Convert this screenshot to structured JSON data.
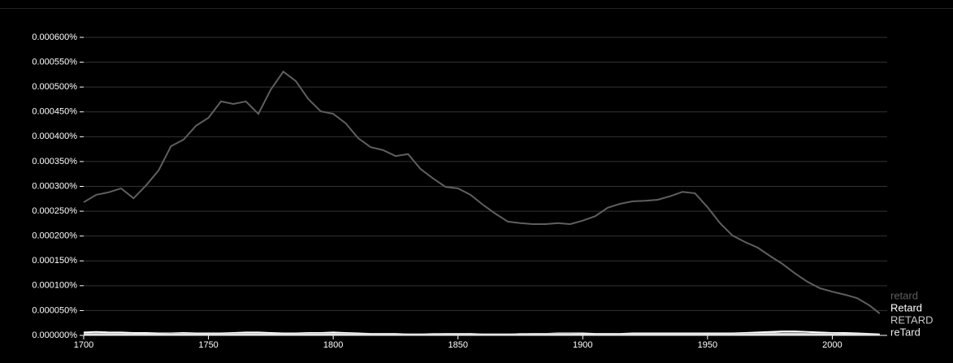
{
  "chart_data": {
    "type": "line",
    "x": [
      1700,
      1705,
      1710,
      1715,
      1720,
      1725,
      1730,
      1735,
      1740,
      1745,
      1750,
      1755,
      1760,
      1765,
      1770,
      1775,
      1780,
      1785,
      1790,
      1795,
      1800,
      1805,
      1810,
      1815,
      1820,
      1825,
      1830,
      1835,
      1840,
      1845,
      1850,
      1855,
      1860,
      1865,
      1870,
      1875,
      1880,
      1885,
      1890,
      1895,
      1900,
      1905,
      1910,
      1915,
      1920,
      1925,
      1930,
      1935,
      1940,
      1945,
      1950,
      1955,
      1960,
      1965,
      1970,
      1975,
      1980,
      1985,
      1990,
      1995,
      2000,
      2005,
      2010,
      2015,
      2019
    ],
    "xlim": [
      1700,
      2022
    ],
    "xticks": [
      1700,
      1750,
      1800,
      1850,
      1900,
      1950,
      2000
    ],
    "ylim": [
      0,
      0.0006
    ],
    "yticks": [
      {
        "value": 0,
        "label": "0.000000%"
      },
      {
        "value": 5e-05,
        "label": "0.000050%"
      },
      {
        "value": 0.0001,
        "label": "0.000100%"
      },
      {
        "value": 0.00015,
        "label": "0.000150%"
      },
      {
        "value": 0.0002,
        "label": "0.000200%"
      },
      {
        "value": 0.00025,
        "label": "0.000250%"
      },
      {
        "value": 0.0003,
        "label": "0.000300%"
      },
      {
        "value": 0.00035,
        "label": "0.000350%"
      },
      {
        "value": 0.0004,
        "label": "0.000400%"
      },
      {
        "value": 0.00045,
        "label": "0.000450%"
      },
      {
        "value": 0.0005,
        "label": "0.000500%"
      },
      {
        "value": 0.00055,
        "label": "0.000550%"
      },
      {
        "value": 0.0006,
        "label": "0.000600%"
      }
    ],
    "grid": true,
    "series": [
      {
        "name": "retard",
        "color": "#5f5f5f",
        "values": [
          0.000268,
          0.000283,
          0.000288,
          0.000296,
          0.000276,
          0.000302,
          0.000332,
          0.000381,
          0.000394,
          0.000422,
          0.000438,
          0.000471,
          0.000466,
          0.000471,
          0.000446,
          0.000495,
          0.000531,
          0.000512,
          0.000476,
          0.000451,
          0.000446,
          0.000427,
          0.000397,
          0.000379,
          0.000373,
          0.000361,
          0.000365,
          0.000335,
          0.000316,
          0.000299,
          0.000296,
          0.000283,
          0.000263,
          0.000245,
          0.000229,
          0.000226,
          0.000224,
          0.000224,
          0.000226,
          0.000224,
          0.000231,
          0.00024,
          0.000257,
          0.000265,
          0.00027,
          0.000271,
          0.000273,
          0.00028,
          0.000289,
          0.000286,
          0.000258,
          0.000226,
          0.000201,
          0.000188,
          0.000177,
          0.00016,
          0.000144,
          0.000125,
          0.000108,
          9.5e-05,
          8.8e-05,
          8.2e-05,
          7.5e-05,
          6e-05,
          4.4e-05
        ]
      },
      {
        "name": "Retard",
        "color": "#ffffff",
        "values": [
          6e-06,
          7e-06,
          6e-06,
          6e-06,
          5e-06,
          5e-06,
          4e-06,
          4e-06,
          5e-06,
          4e-06,
          4e-06,
          4e-06,
          5e-06,
          6e-06,
          6e-06,
          5e-06,
          4e-06,
          4e-06,
          5e-06,
          5e-06,
          6e-06,
          5e-06,
          4e-06,
          3e-06,
          3e-06,
          3e-06,
          2e-06,
          2e-06,
          2e-06,
          3e-06,
          3e-06,
          3e-06,
          2e-06,
          2e-06,
          2e-06,
          2e-06,
          3e-06,
          3e-06,
          4e-06,
          4e-06,
          4e-06,
          3e-06,
          3e-06,
          3e-06,
          4e-06,
          4e-06,
          4e-06,
          4e-06,
          4e-06,
          4e-06,
          4e-06,
          4e-06,
          4e-06,
          5e-06,
          6e-06,
          7e-06,
          8e-06,
          8e-06,
          7e-06,
          6e-06,
          5e-06,
          5e-06,
          4e-06,
          3e-06,
          2e-06
        ]
      },
      {
        "name": "RETARD",
        "color": "#c8c8c8",
        "values": [
          3e-06,
          3e-06,
          3e-06,
          3e-06,
          2e-06,
          2e-06,
          2e-06,
          3e-06,
          3e-06,
          2e-06,
          2e-06,
          2e-06,
          3e-06,
          3e-06,
          3e-06,
          2e-06,
          2e-06,
          2e-06,
          3e-06,
          3e-06,
          3e-06,
          3e-06,
          2e-06,
          2e-06,
          2e-06,
          2e-06,
          2e-06,
          2e-06,
          3e-06,
          3e-06,
          3e-06,
          2e-06,
          2e-06,
          2e-06,
          2e-06,
          3e-06,
          3e-06,
          3e-06,
          3e-06,
          3e-06,
          2e-06,
          2e-06,
          2e-06,
          2e-06,
          2e-06,
          2e-06,
          2e-06,
          2e-06,
          2e-06,
          2e-06,
          2e-06,
          2e-06,
          2e-06,
          3e-06,
          3e-06,
          4e-06,
          4e-06,
          4e-06,
          3e-06,
          3e-06,
          3e-06,
          2e-06,
          2e-06,
          2e-06,
          1e-06
        ]
      },
      {
        "name": "reTard",
        "color": "#ececec",
        "values": [
          1e-06,
          1e-06,
          1e-06,
          1e-06,
          1e-06,
          1e-06,
          1e-06,
          1e-06,
          1e-06,
          1e-06,
          1e-06,
          1e-06,
          1e-06,
          1e-06,
          1e-06,
          1e-06,
          1e-06,
          1e-06,
          1e-06,
          1e-06,
          1e-06,
          1e-06,
          1e-06,
          1e-06,
          1e-06,
          1e-06,
          1e-06,
          1e-06,
          1e-06,
          1e-06,
          1e-06,
          1e-06,
          1e-06,
          1e-06,
          1e-06,
          1e-06,
          1e-06,
          1e-06,
          1e-06,
          1e-06,
          1e-06,
          1e-06,
          1e-06,
          1e-06,
          1e-06,
          1e-06,
          1e-06,
          1e-06,
          1e-06,
          1e-06,
          1e-06,
          1e-06,
          1e-06,
          1e-06,
          1e-06,
          1e-06,
          1e-06,
          1e-06,
          1e-06,
          1e-06,
          1e-06,
          1e-06,
          1e-06,
          1e-06,
          1e-06
        ]
      }
    ]
  }
}
